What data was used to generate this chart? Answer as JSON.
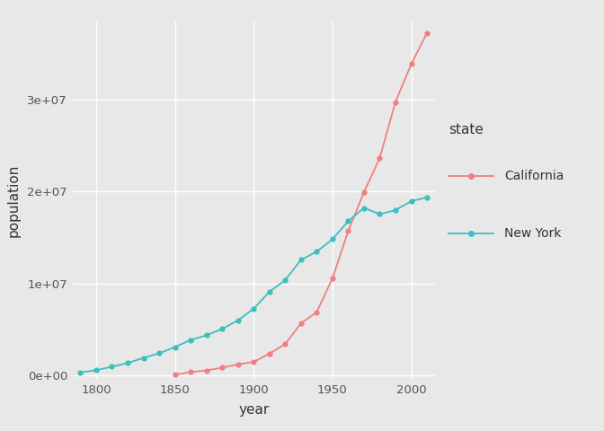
{
  "california_years": [
    1850,
    1860,
    1870,
    1880,
    1890,
    1900,
    1910,
    1920,
    1930,
    1940,
    1950,
    1960,
    1970,
    1980,
    1990,
    2000,
    2010
  ],
  "california_pop": [
    92597,
    379994,
    560247,
    864694,
    1213398,
    1485053,
    2377549,
    3426861,
    5677251,
    6907387,
    10586223,
    15717204,
    19953134,
    23667902,
    29760021,
    33871648,
    37253956
  ],
  "newyork_years": [
    1790,
    1800,
    1810,
    1820,
    1830,
    1840,
    1850,
    1860,
    1870,
    1880,
    1890,
    1900,
    1910,
    1920,
    1930,
    1940,
    1950,
    1960,
    1970,
    1980,
    1990,
    2000,
    2010
  ],
  "newyork_pop": [
    340120,
    589051,
    959049,
    1372812,
    1918608,
    2428921,
    3097394,
    3880735,
    4382759,
    5082871,
    6003174,
    7268894,
    9113614,
    10385227,
    12588066,
    13479142,
    14830192,
    16782304,
    18236967,
    17558072,
    17990455,
    18976457,
    19378102
  ],
  "california_color": "#F08080",
  "newyork_color": "#3DBFBF",
  "outer_bg": "#E8E8E8",
  "panel_bg": "#E8E8E8",
  "grid_color": "#FFFFFF",
  "xlabel": "year",
  "ylabel": "population",
  "legend_title": "state",
  "legend_california": "California",
  "legend_newyork": "New York",
  "ylim_max": 38500000.0,
  "xlim_min": 1785,
  "xlim_max": 2015
}
